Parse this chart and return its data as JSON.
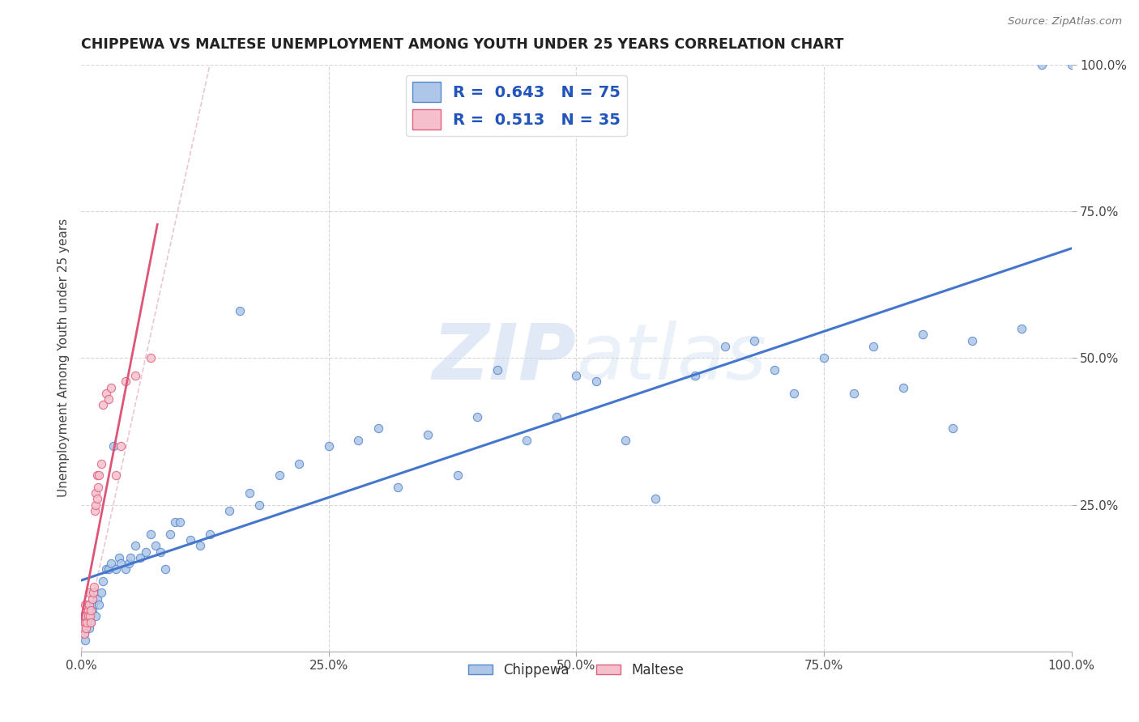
{
  "title": "CHIPPEWA VS MALTESE UNEMPLOYMENT AMONG YOUTH UNDER 25 YEARS CORRELATION CHART",
  "source": "Source: ZipAtlas.com",
  "ylabel": "Unemployment Among Youth under 25 years",
  "chippewa_R": 0.643,
  "chippewa_N": 75,
  "maltese_R": 0.513,
  "maltese_N": 35,
  "chippewa_color": "#aec6e8",
  "chippewa_edge_color": "#5588cc",
  "maltese_color": "#f5c0cc",
  "maltese_edge_color": "#e06080",
  "chippewa_line_color": "#4477cc",
  "maltese_line_color": "#dd5577",
  "diag_color": "#e8c0cc",
  "background_color": "#ffffff",
  "grid_color": "#cccccc",
  "title_color": "#222222",
  "source_color": "#777777",
  "legend_text_color": "#2255bb",
  "watermark_color": "#c8d8ee",
  "chippewa_x": [
    0.003,
    0.004,
    0.004,
    0.005,
    0.006,
    0.007,
    0.008,
    0.009,
    0.01,
    0.011,
    0.012,
    0.013,
    0.015,
    0.016,
    0.018,
    0.02,
    0.022,
    0.025,
    0.028,
    0.03,
    0.033,
    0.035,
    0.038,
    0.04,
    0.045,
    0.048,
    0.05,
    0.055,
    0.06,
    0.065,
    0.07,
    0.075,
    0.08,
    0.085,
    0.09,
    0.095,
    0.1,
    0.11,
    0.12,
    0.13,
    0.15,
    0.16,
    0.17,
    0.18,
    0.2,
    0.22,
    0.25,
    0.28,
    0.3,
    0.32,
    0.35,
    0.38,
    0.4,
    0.42,
    0.45,
    0.48,
    0.5,
    0.52,
    0.55,
    0.58,
    0.62,
    0.65,
    0.68,
    0.7,
    0.72,
    0.75,
    0.78,
    0.8,
    0.83,
    0.85,
    0.88,
    0.9,
    0.95,
    0.97,
    1.0
  ],
  "chippewa_y": [
    0.03,
    0.02,
    0.05,
    0.04,
    0.08,
    0.06,
    0.04,
    0.06,
    0.05,
    0.07,
    0.08,
    0.1,
    0.06,
    0.09,
    0.08,
    0.1,
    0.12,
    0.14,
    0.14,
    0.15,
    0.35,
    0.14,
    0.16,
    0.15,
    0.14,
    0.15,
    0.16,
    0.18,
    0.16,
    0.17,
    0.2,
    0.18,
    0.17,
    0.14,
    0.2,
    0.22,
    0.22,
    0.19,
    0.18,
    0.2,
    0.24,
    0.58,
    0.27,
    0.25,
    0.3,
    0.32,
    0.35,
    0.36,
    0.38,
    0.28,
    0.37,
    0.3,
    0.4,
    0.48,
    0.36,
    0.4,
    0.47,
    0.46,
    0.36,
    0.26,
    0.47,
    0.52,
    0.53,
    0.48,
    0.44,
    0.5,
    0.44,
    0.52,
    0.45,
    0.54,
    0.38,
    0.53,
    0.55,
    1.0,
    1.0
  ],
  "maltese_x": [
    0.002,
    0.003,
    0.003,
    0.004,
    0.004,
    0.005,
    0.005,
    0.006,
    0.007,
    0.007,
    0.008,
    0.008,
    0.009,
    0.01,
    0.01,
    0.011,
    0.012,
    0.013,
    0.014,
    0.015,
    0.015,
    0.016,
    0.016,
    0.017,
    0.018,
    0.02,
    0.022,
    0.025,
    0.028,
    0.03,
    0.035,
    0.04,
    0.045,
    0.055,
    0.07
  ],
  "maltese_y": [
    0.04,
    0.03,
    0.06,
    0.05,
    0.08,
    0.04,
    0.06,
    0.05,
    0.07,
    0.06,
    0.08,
    0.1,
    0.06,
    0.07,
    0.05,
    0.09,
    0.1,
    0.11,
    0.24,
    0.25,
    0.27,
    0.26,
    0.3,
    0.28,
    0.3,
    0.32,
    0.42,
    0.44,
    0.43,
    0.45,
    0.3,
    0.35,
    0.46,
    0.47,
    0.5
  ],
  "xlim": [
    0.0,
    1.0
  ],
  "ylim": [
    0.0,
    1.0
  ],
  "xticks": [
    0.0,
    0.25,
    0.5,
    0.75,
    1.0
  ],
  "xtick_labels": [
    "0.0%",
    "25.0%",
    "50.0%",
    "75.0%",
    "100.0%"
  ],
  "yticks_right": [
    0.25,
    0.5,
    0.75,
    1.0
  ],
  "ytick_right_labels": [
    "25.0%",
    "50.0%",
    "75.0%",
    "100.0%"
  ]
}
